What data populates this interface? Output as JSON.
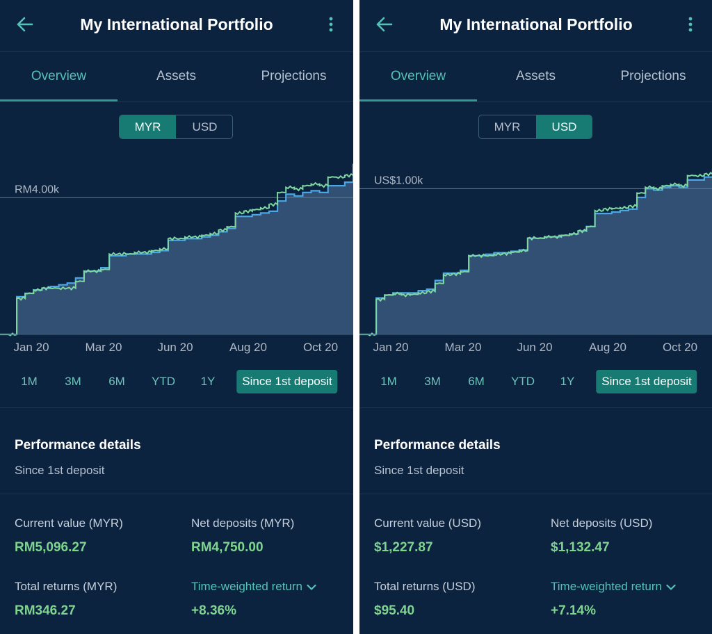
{
  "colors": {
    "background": "#0c2340",
    "accent": "#177a73",
    "accent_text": "#55c2b8",
    "positive": "#7fd58f",
    "deposit_line": "#4aa8e6",
    "value_line": "#7fd6a0",
    "area_fill": "#355579"
  },
  "panels": [
    {
      "app_bar": {
        "title": "My International Portfolio",
        "back_icon": "arrow-left-icon",
        "menu_icon": "more-vertical-icon"
      },
      "tabs": [
        {
          "label": "Overview",
          "active": true
        },
        {
          "label": "Assets",
          "active": false
        },
        {
          "label": "Projections",
          "active": false
        }
      ],
      "currency_toggle": [
        {
          "label": "MYR",
          "active": true
        },
        {
          "label": "USD",
          "active": false
        }
      ],
      "chart_data": {
        "type": "area",
        "reference_line": {
          "value": 4000,
          "label": "RM4.00k"
        },
        "x_ticks": [
          "Jan 20",
          "Mar 20",
          "Jun 20",
          "Aug 20",
          "Oct 20"
        ],
        "ylim": [
          0,
          4900
        ],
        "series": [
          {
            "name": "",
            "values": [
              0,
              1100,
              1200,
              1300,
              1350,
              1400,
              1450,
              1500,
              1650,
              1850,
              1850,
              1950,
              2300,
              2300,
              2350,
              2350,
              2350,
              2400,
              2450,
              2750,
              2750,
              2800,
              2800,
              2850,
              2900,
              3000,
              3100,
              3450,
              3450,
              3500,
              3550,
              3600,
              3900,
              4100,
              4050,
              4150,
              4200,
              4150,
              4350,
              4350,
              4450,
              4800
            ]
          },
          {
            "name": "",
            "values": [
              0,
              1050,
              1200,
              1300,
              1350,
              1350,
              1350,
              1350,
              1550,
              1850,
              1850,
              1900,
              2350,
              2350,
              2350,
              2400,
              2400,
              2450,
              2500,
              2800,
              2800,
              2850,
              2850,
              2900,
              2950,
              3050,
              3150,
              3550,
              3600,
              3650,
              3700,
              3800,
              4150,
              4300,
              4250,
              4350,
              4400,
              4350,
              4600,
              4600,
              4650,
              4990
            ]
          }
        ]
      },
      "time_ranges": [
        {
          "label": "1M",
          "active": false
        },
        {
          "label": "3M",
          "active": false
        },
        {
          "label": "6M",
          "active": false
        },
        {
          "label": "YTD",
          "active": false
        },
        {
          "label": "1Y",
          "active": false
        },
        {
          "label": "Since 1st deposit",
          "active": true
        }
      ],
      "performance": {
        "title": "Performance details",
        "subtitle": "Since 1st deposit",
        "current_value_label": "Current value (MYR)",
        "current_value": "RM5,096.27",
        "net_deposits_label": "Net deposits (MYR)",
        "net_deposits": "RM4,750.00",
        "total_returns_label": "Total returns (MYR)",
        "total_returns": "RM346.27",
        "twr_label": "Time-weighted return",
        "twr_value": "+8.36%"
      }
    },
    {
      "app_bar": {
        "title": "My International Portfolio",
        "back_icon": "arrow-left-icon",
        "menu_icon": "more-vertical-icon"
      },
      "tabs": [
        {
          "label": "Overview",
          "active": true
        },
        {
          "label": "Assets",
          "active": false
        },
        {
          "label": "Projections",
          "active": false
        }
      ],
      "currency_toggle": [
        {
          "label": "MYR",
          "active": false
        },
        {
          "label": "USD",
          "active": true
        }
      ],
      "chart_data": {
        "type": "area",
        "reference_line": {
          "value": 1000,
          "label": "US$1.00k"
        },
        "x_ticks": [
          "Jan 20",
          "Mar 20",
          "Jun 20",
          "Aug 20",
          "Oct 20"
        ],
        "ylim": [
          0,
          1150
        ],
        "series": [
          {
            "name": "",
            "values": [
              0,
              250,
              270,
              285,
              285,
              285,
              300,
              310,
              370,
              420,
              420,
              440,
              540,
              540,
              550,
              560,
              560,
              570,
              580,
              660,
              660,
              670,
              670,
              680,
              690,
              710,
              740,
              830,
              830,
              840,
              850,
              860,
              940,
              1000,
              990,
              1010,
              1020,
              1010,
              1060,
              1060,
              1080,
              1135
            ]
          },
          {
            "name": "",
            "values": [
              0,
              240,
              270,
              280,
              270,
              275,
              285,
              295,
              350,
              410,
              415,
              430,
              540,
              540,
              540,
              550,
              555,
              565,
              575,
              660,
              660,
              670,
              670,
              680,
              690,
              710,
              740,
              850,
              860,
              865,
              870,
              880,
              970,
              1010,
              1000,
              1020,
              1030,
              1020,
              1090,
              1090,
              1100,
              1190
            ]
          }
        ]
      },
      "time_ranges": [
        {
          "label": "1M",
          "active": false
        },
        {
          "label": "3M",
          "active": false
        },
        {
          "label": "6M",
          "active": false
        },
        {
          "label": "YTD",
          "active": false
        },
        {
          "label": "1Y",
          "active": false
        },
        {
          "label": "Since 1st deposit",
          "active": true
        }
      ],
      "performance": {
        "title": "Performance details",
        "subtitle": "Since 1st deposit",
        "current_value_label": "Current value (USD)",
        "current_value": "$1,227.87",
        "net_deposits_label": "Net deposits (USD)",
        "net_deposits": "$1,132.47",
        "total_returns_label": "Total returns (USD)",
        "total_returns": "$95.40",
        "twr_label": "Time-weighted return",
        "twr_value": "+7.14%"
      }
    }
  ]
}
